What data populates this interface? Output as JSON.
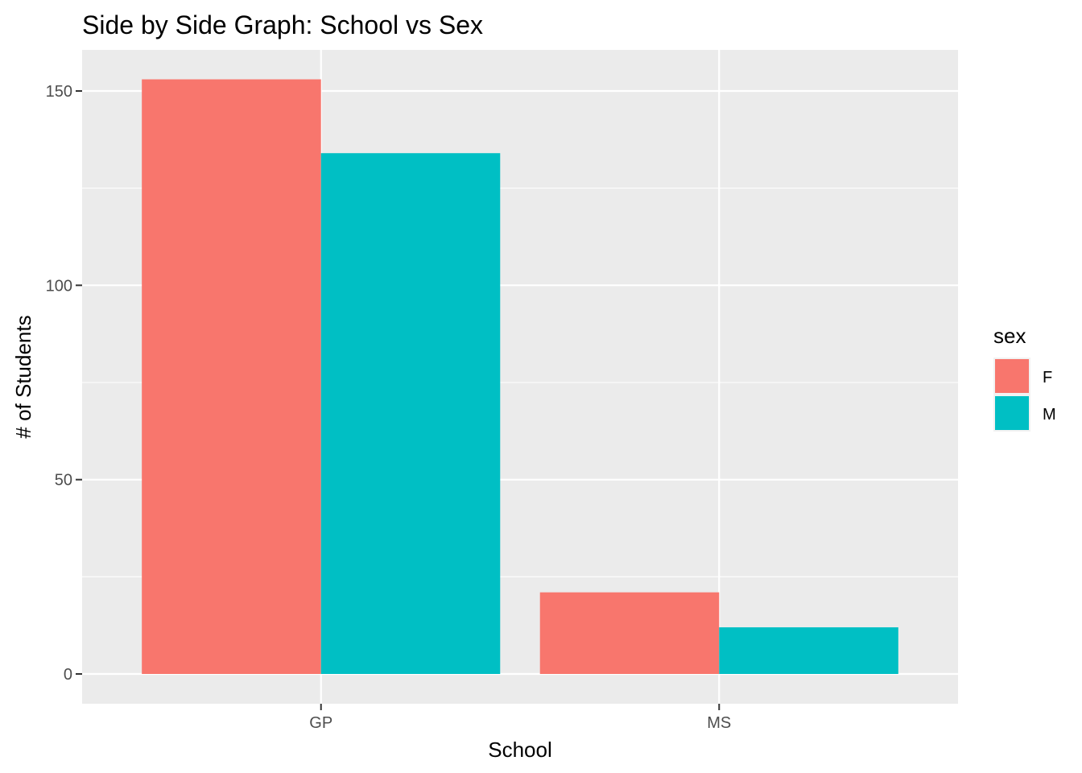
{
  "chart_data": {
    "type": "bar",
    "title": "Side by Side Graph: School vs Sex",
    "xlabel": "School",
    "ylabel": "# of Students",
    "categories": [
      "GP",
      "MS"
    ],
    "series": [
      {
        "name": "F",
        "values": [
          153,
          21
        ],
        "color": "#F8766D"
      },
      {
        "name": "M",
        "values": [
          134,
          12
        ],
        "color": "#00BFC4"
      }
    ],
    "ylim": [
      0,
      160
    ],
    "y_ticks": [
      0,
      50,
      100,
      150
    ],
    "y_minor_ticks": [
      25,
      75,
      125
    ],
    "legend": {
      "title": "sex",
      "position": "right"
    },
    "grid": true,
    "panel_background": "#EBEBEB",
    "grid_color": "#FFFFFF"
  }
}
